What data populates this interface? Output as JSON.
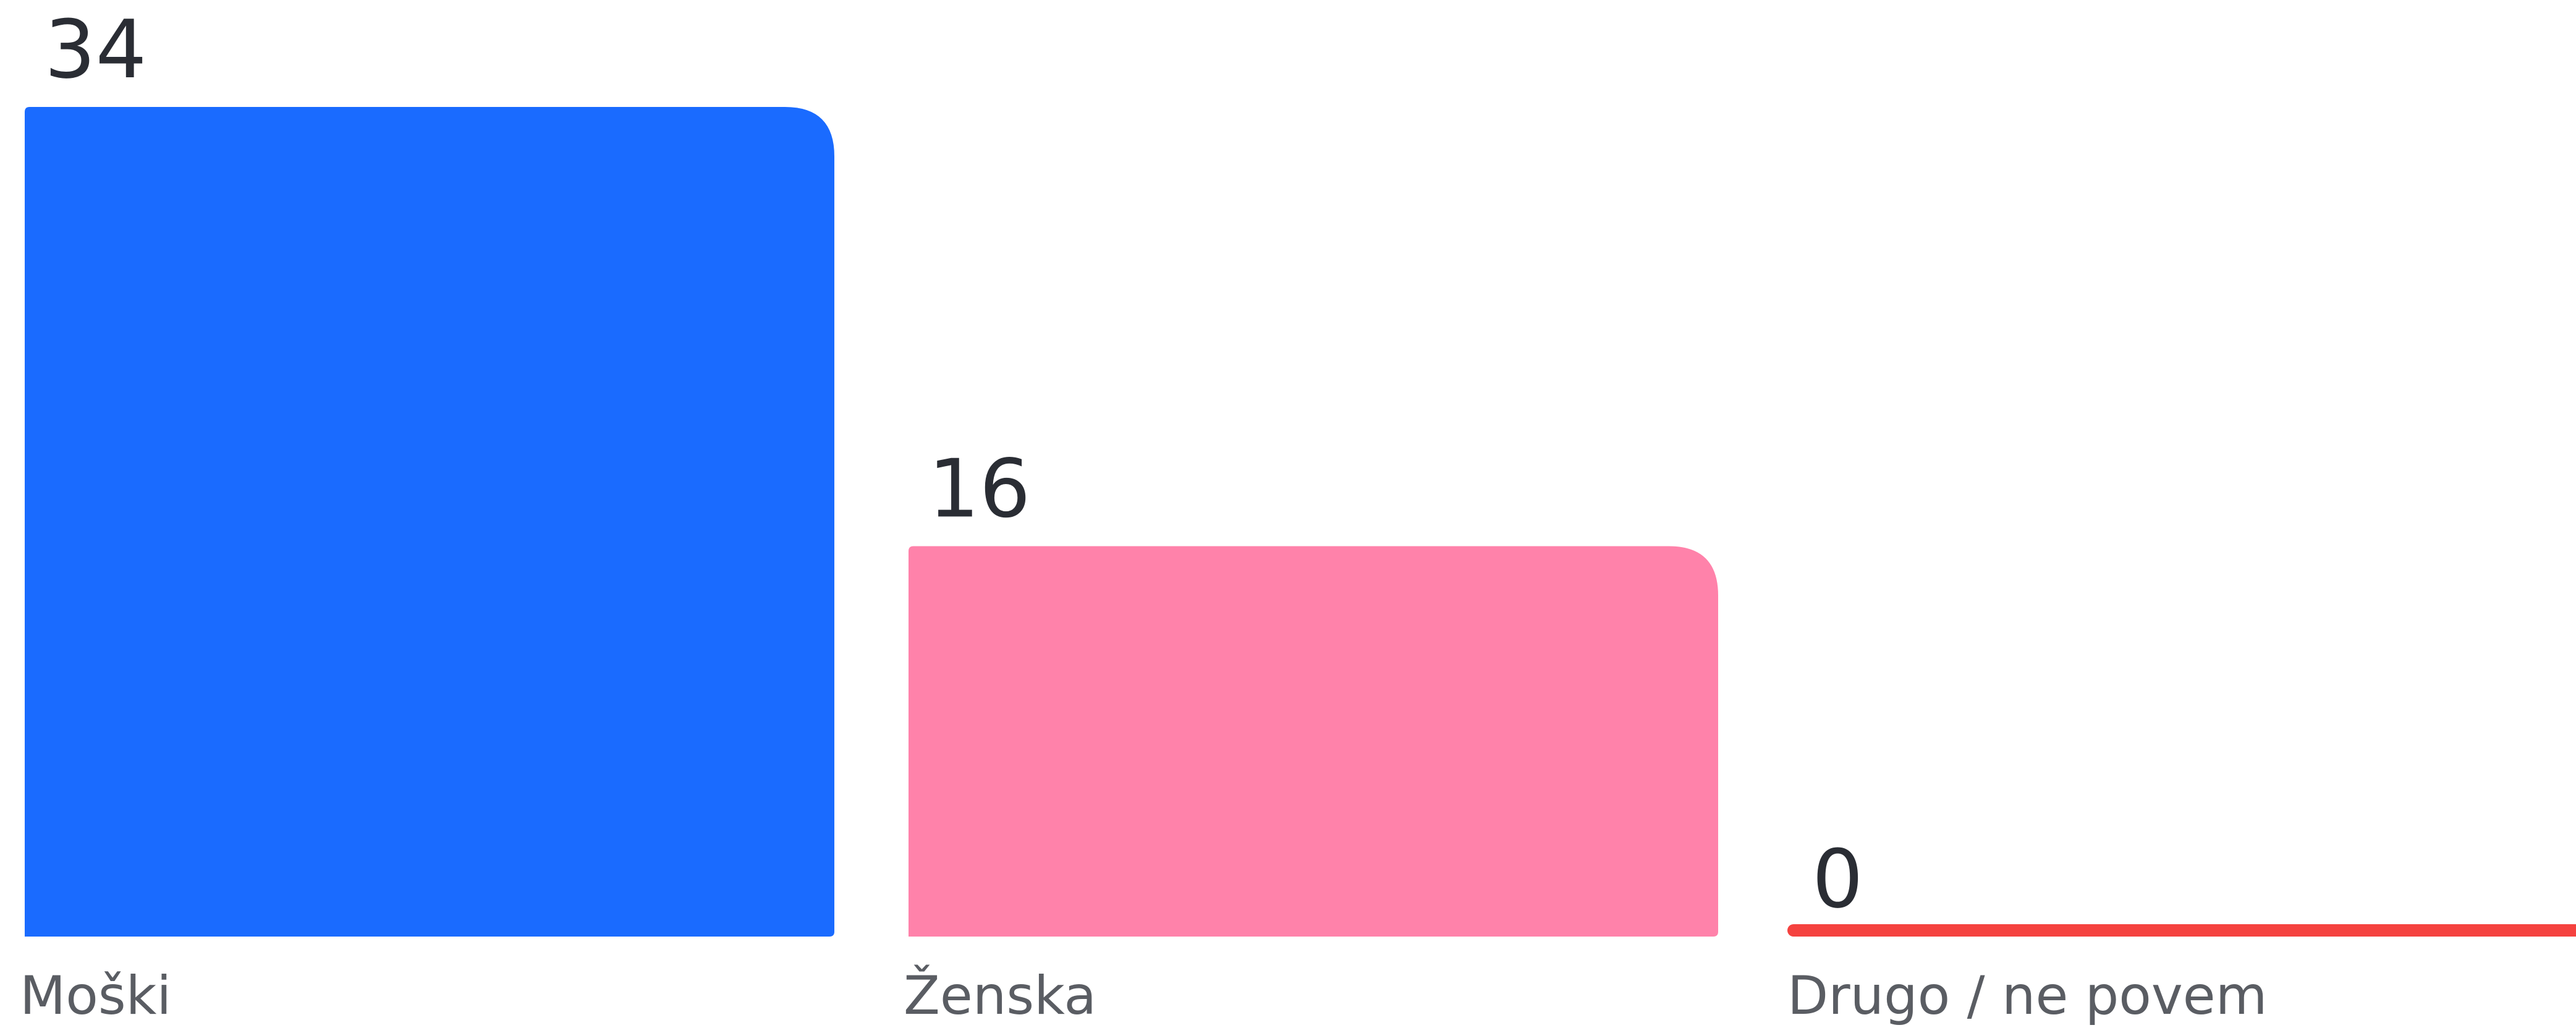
{
  "chart_data": {
    "type": "bar",
    "categories": [
      "Moški",
      "Ženska",
      "Drugo / ne povem"
    ],
    "values": [
      34,
      16,
      0
    ],
    "colors": [
      "#1a6bff",
      "#ff82aa",
      "#f5423f"
    ]
  }
}
